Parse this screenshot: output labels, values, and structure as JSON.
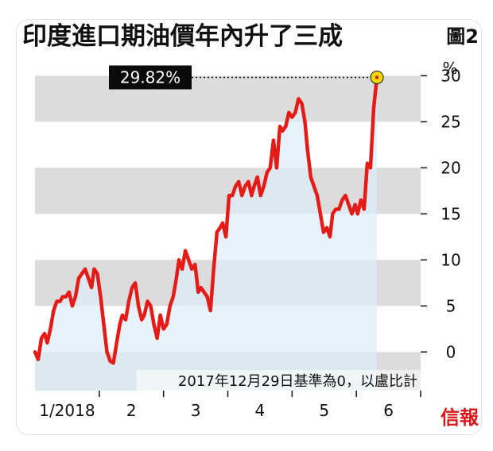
{
  "chart_data": {
    "type": "area",
    "title": "印度進口期油價年內升了三成",
    "figure_label": "圖2",
    "y_unit": "%",
    "ylim": [
      -4.2,
      31.5
    ],
    "yticks": [
      0,
      5,
      10,
      15,
      20,
      25,
      30
    ],
    "ytick_labels": [
      "0",
      "5",
      "10",
      "15",
      "20",
      "25",
      "30"
    ],
    "x_ticks": [
      {
        "x": 0.5,
        "label": "1/2018"
      },
      {
        "x": 1.5,
        "label": "2"
      },
      {
        "x": 2.5,
        "label": "3"
      },
      {
        "x": 3.5,
        "label": "4"
      },
      {
        "x": 4.5,
        "label": "5"
      },
      {
        "x": 5.5,
        "label": "6"
      }
    ],
    "xlim": [
      0,
      6.0
    ],
    "annotation": {
      "label": "29.82%",
      "value": 29.82
    },
    "note": "2017年12月29日基準為0，以盧比計",
    "grid_bands": true,
    "colors": {
      "line": "#e41b17",
      "area": "#ddeef8",
      "band": "#dcdcdc",
      "end_marker": "#f2d600"
    },
    "series": [
      {
        "points": [
          [
            0.0,
            0
          ],
          [
            0.05,
            -0.8
          ],
          [
            0.1,
            1.5
          ],
          [
            0.15,
            2
          ],
          [
            0.19,
            1
          ],
          [
            0.24,
            2.5
          ],
          [
            0.29,
            4.5
          ],
          [
            0.34,
            5.5
          ],
          [
            0.39,
            5.5
          ],
          [
            0.43,
            6
          ],
          [
            0.48,
            6
          ],
          [
            0.53,
            6.5
          ],
          [
            0.58,
            5
          ],
          [
            0.63,
            6
          ],
          [
            0.68,
            8
          ],
          [
            0.73,
            8.5
          ],
          [
            0.78,
            9
          ],
          [
            0.83,
            8
          ],
          [
            0.88,
            7
          ],
          [
            0.92,
            9
          ],
          [
            0.97,
            8.5
          ],
          [
            1.02,
            6
          ],
          [
            1.07,
            3
          ],
          [
            1.12,
            0
          ],
          [
            1.17,
            -1
          ],
          [
            1.22,
            -1.2
          ],
          [
            1.27,
            1
          ],
          [
            1.32,
            3
          ],
          [
            1.36,
            4
          ],
          [
            1.41,
            3.5
          ],
          [
            1.46,
            5.5
          ],
          [
            1.51,
            7
          ],
          [
            1.56,
            7.5
          ],
          [
            1.61,
            5
          ],
          [
            1.66,
            3.5
          ],
          [
            1.7,
            4
          ],
          [
            1.75,
            5.5
          ],
          [
            1.8,
            5
          ],
          [
            1.85,
            3
          ],
          [
            1.9,
            1.5
          ],
          [
            1.95,
            4
          ],
          [
            2.0,
            2.5
          ],
          [
            2.05,
            3
          ],
          [
            2.1,
            5
          ],
          [
            2.15,
            6
          ],
          [
            2.2,
            8
          ],
          [
            2.24,
            10
          ],
          [
            2.29,
            9
          ],
          [
            2.34,
            11
          ],
          [
            2.39,
            10
          ],
          [
            2.44,
            9
          ],
          [
            2.49,
            9.5
          ],
          [
            2.54,
            6.5
          ],
          [
            2.58,
            7
          ],
          [
            2.63,
            6.5
          ],
          [
            2.68,
            6
          ],
          [
            2.73,
            4.5
          ],
          [
            2.78,
            9
          ],
          [
            2.83,
            13
          ],
          [
            2.88,
            13.5
          ],
          [
            2.92,
            14
          ],
          [
            2.97,
            12.5
          ],
          [
            3.02,
            17
          ],
          [
            3.07,
            17
          ],
          [
            3.12,
            18
          ],
          [
            3.17,
            18.5
          ],
          [
            3.22,
            17
          ],
          [
            3.27,
            18
          ],
          [
            3.32,
            18.5
          ],
          [
            3.37,
            17
          ],
          [
            3.41,
            18
          ],
          [
            3.46,
            19
          ],
          [
            3.51,
            17
          ],
          [
            3.56,
            18
          ],
          [
            3.61,
            19.5
          ],
          [
            3.66,
            20
          ],
          [
            3.71,
            23
          ],
          [
            3.76,
            20
          ],
          [
            3.81,
            24.5
          ],
          [
            3.85,
            24
          ],
          [
            3.9,
            24.5
          ],
          [
            3.95,
            26
          ],
          [
            4.0,
            25.5
          ],
          [
            4.05,
            26
          ],
          [
            4.1,
            27.5
          ],
          [
            4.15,
            27
          ],
          [
            4.2,
            25
          ],
          [
            4.24,
            22
          ],
          [
            4.29,
            19
          ],
          [
            4.34,
            18
          ],
          [
            4.39,
            17
          ],
          [
            4.44,
            15
          ],
          [
            4.49,
            13
          ],
          [
            4.54,
            13.5
          ],
          [
            4.59,
            12.5
          ],
          [
            4.63,
            15
          ],
          [
            4.68,
            15.5
          ],
          [
            4.73,
            15.5
          ],
          [
            4.78,
            16.5
          ],
          [
            4.83,
            17
          ],
          [
            4.88,
            16
          ],
          [
            4.93,
            15
          ],
          [
            4.98,
            16
          ],
          [
            5.02,
            15
          ],
          [
            5.07,
            16.5
          ],
          [
            5.12,
            15.5
          ],
          [
            5.17,
            20.5
          ],
          [
            5.22,
            20
          ],
          [
            5.27,
            26.5
          ],
          [
            5.32,
            29.82
          ]
        ]
      }
    ]
  },
  "logo_text": "信報"
}
